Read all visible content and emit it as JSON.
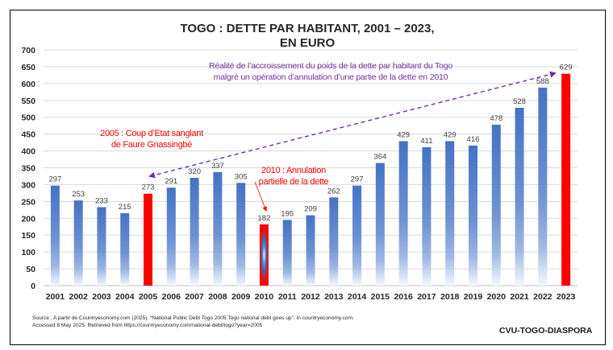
{
  "chart_data": {
    "type": "bar",
    "title": [
      "TOGO : DETTE PAR HABITANT, 2001 – 2023,",
      "EN EURO"
    ],
    "xlabel": "",
    "ylabel": "",
    "ylim": [
      0,
      700
    ],
    "ytick_step": 50,
    "yticks": [
      "0",
      "50",
      "100",
      "150",
      "200",
      "250",
      "300",
      "350",
      "400",
      "450",
      "500",
      "550",
      "600",
      "650",
      "700"
    ],
    "grid": true,
    "legend": "none",
    "categories": [
      "2001",
      "2002",
      "2003",
      "2004",
      "2005",
      "2006",
      "2007",
      "2008",
      "2009",
      "2010",
      "2011",
      "2012",
      "2013",
      "2014",
      "2015",
      "2016",
      "2017",
      "2018",
      "2019",
      "2020",
      "2021",
      "2022",
      "2023"
    ],
    "values": [
      297,
      253,
      233,
      215,
      273,
      291,
      320,
      337,
      305,
      182,
      195,
      209,
      262,
      297,
      364,
      429,
      411,
      429,
      416,
      478,
      528,
      588,
      629
    ],
    "highlighted": [
      "2005",
      "2010",
      "2023"
    ],
    "colors": {
      "bar": "#4472C4",
      "bar_fade": "#ffffff",
      "highlight": "#FF0000",
      "annotation_trend": "#7030A0",
      "annotation_event": "#FF0000",
      "grid": "#d9d9d9"
    },
    "annotations": [
      {
        "id": "trend",
        "lines": [
          "Réalité de l’accroissement du poids de la dette par habitant du Togo",
          "malgré un opération d’annulation d’une partie de la dette en 2010"
        ],
        "color": "#7030A0",
        "arrow_style": "dashed-double",
        "from_category": "2005",
        "to_category": "2023"
      },
      {
        "id": "coup-2005",
        "lines": [
          "2005 : Coup d’Etat sanglant",
          "de Faure Gnassingbé"
        ],
        "color": "#FF0000"
      },
      {
        "id": "annulation-2010",
        "lines": [
          "2010 : Annulation",
          "partielle de la dette"
        ],
        "color": "#FF0000",
        "arrow_style": "thin",
        "target_category": "2010"
      }
    ]
  },
  "footer": {
    "source_lines": [
      "Source : A partir de Countryeconomy.com (2025). “National Public Debt Togo 2005:Togo national debt goes up”. In countryeconomy.com.",
      "Accessed 8 May 2025. Retrieved from https://countryeconomy.com/national-debt/togo?year=2005"
    ],
    "brand": "CVU-TOGO-DIASPORA"
  }
}
